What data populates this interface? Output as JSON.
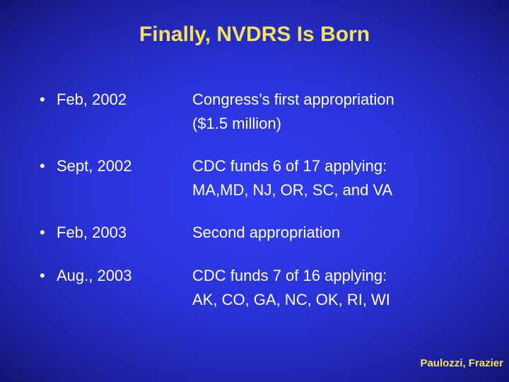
{
  "header": {
    "title": "Finally, NVDRS Is Born"
  },
  "items": [
    {
      "date": "Feb, 2002",
      "lines": [
        "Congress’s first appropriation",
        "($1.5 million)"
      ]
    },
    {
      "date": "Sept, 2002",
      "lines": [
        "CDC  funds 6 of 17 applying:",
        "MA,MD, NJ, OR, SC, and VA"
      ]
    },
    {
      "date": "Feb, 2003",
      "lines": [
        "Second appropriation"
      ]
    },
    {
      "date": "Aug., 2003",
      "lines": [
        "CDC funds 7 of 16 applying:",
        "AK, CO, GA, NC, OK, RI, WI"
      ]
    }
  ],
  "footer": {
    "author": "Paulozzi, Frazier"
  }
}
